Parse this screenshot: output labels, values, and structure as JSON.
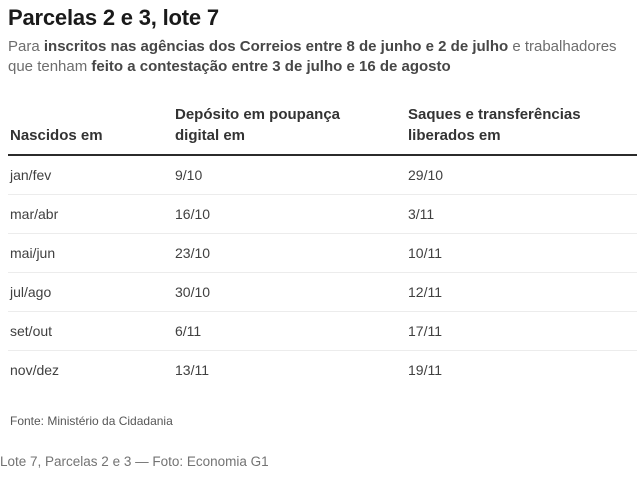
{
  "title": "Parcelas 2 e 3, lote 7",
  "intro": {
    "text1": "Para ",
    "bold1": "inscritos nas agências dos Correios entre 8 de junho e 2 de julho",
    "text2": " e trabalhadores que tenham ",
    "bold2": "feito a contestação entre 3 de julho e 16 de agosto"
  },
  "table": {
    "headers": [
      "Nascidos em",
      "Depósito em poupança digital em",
      "Saques e transferências liberados em"
    ],
    "rows": [
      [
        "jan/fev",
        "9/10",
        "29/10"
      ],
      [
        "mar/abr",
        "16/10",
        "3/11"
      ],
      [
        "mai/jun",
        "23/10",
        "10/11"
      ],
      [
        "jul/ago",
        "30/10",
        "12/11"
      ],
      [
        "set/out",
        "6/11",
        "17/11"
      ],
      [
        "nov/dez",
        "13/11",
        "19/11"
      ]
    ]
  },
  "source": "Fonte: Ministério da Cidadania",
  "caption": "Lote 7, Parcelas 2 e 3 — Foto: Economia G1",
  "chart_data": {
    "type": "table",
    "title": "Parcelas 2 e 3, lote 7",
    "subtitle": "Para inscritos nas agências dos Correios entre 8 de junho e 2 de julho e trabalhadores que tenham feito a contestação entre 3 de julho e 16 de agosto",
    "columns": [
      "Nascidos em",
      "Depósito em poupança digital em",
      "Saques e transferências liberados em"
    ],
    "rows": [
      [
        "jan/fev",
        "9/10",
        "29/10"
      ],
      [
        "mar/abr",
        "16/10",
        "3/11"
      ],
      [
        "mai/jun",
        "23/10",
        "10/11"
      ],
      [
        "jul/ago",
        "30/10",
        "12/11"
      ],
      [
        "set/out",
        "6/11",
        "17/11"
      ],
      [
        "nov/dez",
        "13/11",
        "19/11"
      ]
    ],
    "source": "Fonte: Ministério da Cidadania"
  },
  "colors": {
    "background": "#ffffff",
    "title_text": "#1a1a1a",
    "intro_regular": "#6d6d6d",
    "intro_bold": "#474747",
    "header_text": "#333333",
    "cell_text": "#404040",
    "header_rule": "#2b2b2b",
    "row_divider": "#ececec",
    "source_text": "#565656",
    "caption_text": "#737373"
  }
}
